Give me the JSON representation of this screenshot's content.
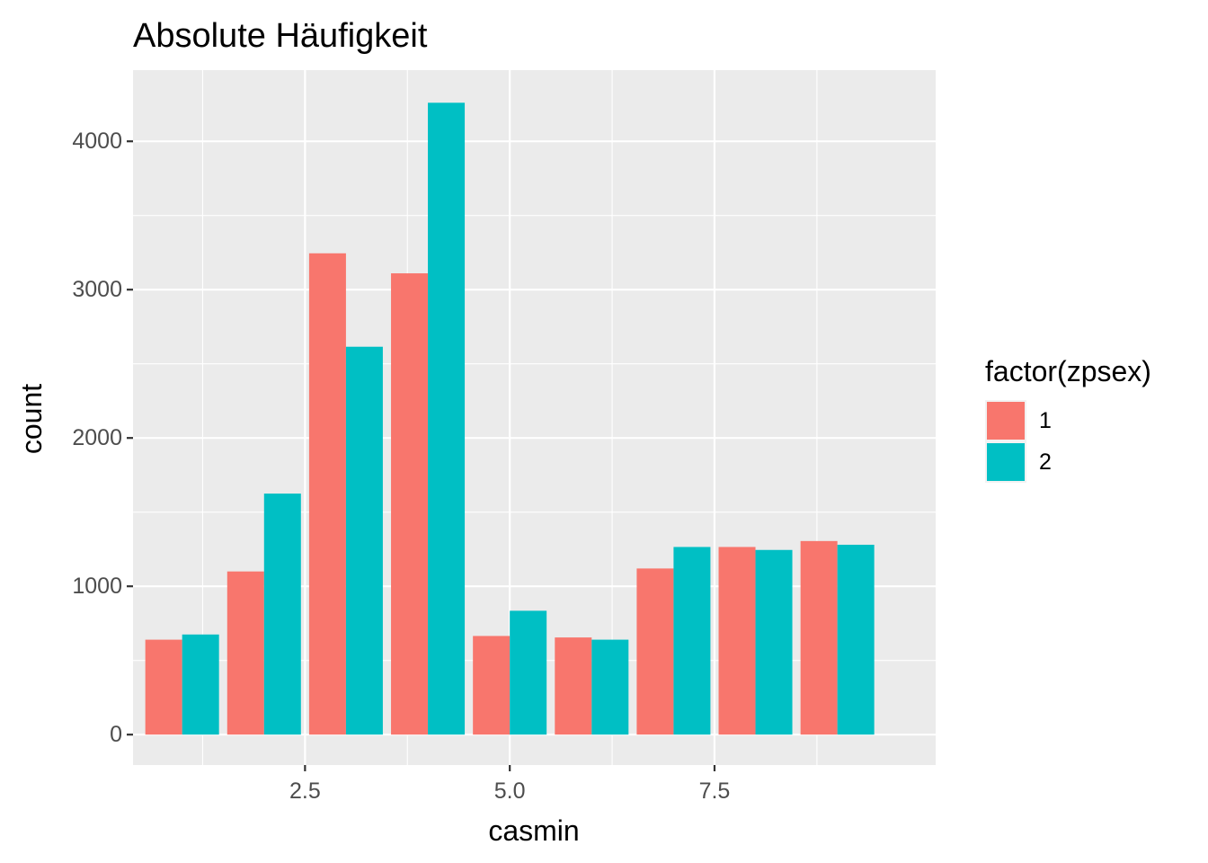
{
  "chart_data": {
    "type": "bar",
    "title": "Absolute Häufigkeit",
    "xlabel": "casmin",
    "ylabel": "count",
    "x": [
      1,
      2,
      3,
      4,
      5,
      6,
      7,
      8,
      9
    ],
    "series": [
      {
        "name": "1",
        "color": "#F8766D",
        "values": [
          640,
          1100,
          3245,
          3110,
          665,
          655,
          1120,
          1265,
          1305
        ]
      },
      {
        "name": "2",
        "color": "#00BFC4",
        "values": [
          675,
          1625,
          2615,
          4260,
          835,
          640,
          1265,
          1245,
          1280
        ]
      }
    ],
    "xlim": [
      0.4,
      10.2
    ],
    "ylim": [
      -205,
      4480
    ],
    "x_ticks": [
      2.5,
      5.0,
      7.5
    ],
    "x_tick_labels": [
      "2.5",
      "5.0",
      "7.5"
    ],
    "y_ticks": [
      0,
      1000,
      2000,
      3000,
      4000
    ],
    "y_tick_labels": [
      "0",
      "1000",
      "2000",
      "3000",
      "4000"
    ],
    "legend": {
      "title": "factor(zpsex)",
      "position": "right",
      "entries": [
        "1",
        "2"
      ]
    },
    "grid": true,
    "panel_background": "#EBEBEB"
  }
}
